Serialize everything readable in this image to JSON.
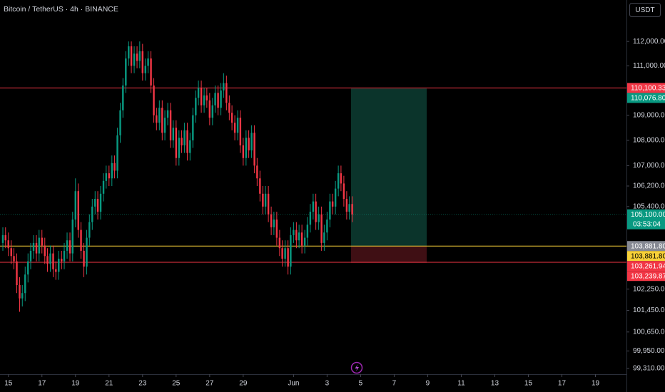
{
  "chart_data": {
    "type": "candlestick",
    "title": "Bitcoin / TetherUS · 4h · BINANCE",
    "currency": "USDT",
    "log_scale": true,
    "grid": false,
    "up_color": "#089981",
    "down_color": "#f23645",
    "xlim": [
      -0.5,
      36.85
    ],
    "ylim": [
      99100,
      113720
    ],
    "xticks": [
      {
        "value": 0,
        "label": "15"
      },
      {
        "value": 2,
        "label": "17"
      },
      {
        "value": 4,
        "label": "19"
      },
      {
        "value": 6,
        "label": "21"
      },
      {
        "value": 8,
        "label": "23"
      },
      {
        "value": 10,
        "label": "25"
      },
      {
        "value": 12,
        "label": "27"
      },
      {
        "value": 14,
        "label": "29"
      },
      {
        "value": 17,
        "label": "Jun"
      },
      {
        "value": 19,
        "label": "3"
      },
      {
        "value": 21,
        "label": "5"
      },
      {
        "value": 23,
        "label": "7"
      },
      {
        "value": 25,
        "label": "9"
      },
      {
        "value": 27,
        "label": "11"
      },
      {
        "value": 29,
        "label": "13"
      },
      {
        "value": 31,
        "label": "15"
      },
      {
        "value": 33,
        "label": "17"
      },
      {
        "value": 35,
        "label": "19"
      }
    ],
    "yticks": [
      {
        "value": 112000,
        "label": "112,000.00"
      },
      {
        "value": 111000,
        "label": "111,000.00"
      },
      {
        "value": 109000,
        "label": "109,000.00"
      },
      {
        "value": 108000,
        "label": "108,000.00"
      },
      {
        "value": 107000,
        "label": "107,000.00"
      },
      {
        "value": 106200,
        "label": "106,200.00"
      },
      {
        "value": 105400,
        "label": "105,400.00"
      },
      {
        "value": 102250,
        "label": "102,250.00"
      },
      {
        "value": 101450,
        "label": "101,450.00"
      },
      {
        "value": 100650,
        "label": "100,650.00"
      },
      {
        "value": 99950,
        "label": "99,950.00"
      },
      {
        "value": 99310,
        "label": "99,310.00"
      }
    ],
    "x": [
      -0.33,
      -0.17,
      0,
      0.17,
      0.33,
      0.5,
      0.67,
      0.83,
      1,
      1.17,
      1.33,
      1.5,
      1.67,
      1.83,
      2,
      2.17,
      2.33,
      2.5,
      2.67,
      2.83,
      3,
      3.17,
      3.33,
      3.5,
      3.67,
      3.83,
      4,
      4.17,
      4.33,
      4.5,
      4.67,
      4.83,
      5,
      5.17,
      5.33,
      5.5,
      5.67,
      5.83,
      6,
      6.17,
      6.33,
      6.5,
      6.67,
      6.83,
      7,
      7.17,
      7.33,
      7.5,
      7.67,
      7.83,
      8,
      8.17,
      8.33,
      8.5,
      8.67,
      8.83,
      9,
      9.17,
      9.33,
      9.5,
      9.67,
      9.83,
      10,
      10.17,
      10.33,
      10.5,
      10.67,
      10.83,
      11,
      11.17,
      11.33,
      11.5,
      11.67,
      11.83,
      12,
      12.17,
      12.33,
      12.5,
      12.67,
      12.83,
      13,
      13.17,
      13.33,
      13.5,
      13.67,
      13.83,
      14,
      14.17,
      14.33,
      14.5,
      14.67,
      14.83,
      15,
      15.17,
      15.33,
      15.5,
      15.67,
      15.83,
      16,
      16.17,
      16.33,
      16.5,
      16.67,
      16.83,
      17,
      17.17,
      17.33,
      17.5,
      17.67,
      17.83,
      18,
      18.17,
      18.33,
      18.5,
      18.67,
      18.83,
      19,
      19.17,
      19.33,
      19.5,
      19.67,
      19.83,
      20,
      20.17,
      20.33,
      20.5
    ],
    "open": [
      104000,
      104300,
      104100,
      103800,
      103500,
      103300,
      102400,
      101900,
      102100,
      102800,
      103300,
      103700,
      104000,
      103600,
      104200,
      103900,
      103500,
      103200,
      103600,
      103000,
      102900,
      103400,
      103300,
      103700,
      104100,
      103600,
      104900,
      106000,
      104500,
      103700,
      103100,
      104200,
      104800,
      105400,
      105700,
      105200,
      105900,
      106400,
      106700,
      106500,
      107100,
      106800,
      108200,
      109200,
      110200,
      111300,
      111800,
      111000,
      111500,
      111200,
      111600,
      110700,
      111000,
      111300,
      110200,
      109000,
      108700,
      109300,
      108300,
      108900,
      109200,
      108000,
      108500,
      107300,
      108100,
      107800,
      108400,
      107500,
      108000,
      109000,
      109700,
      110100,
      109400,
      109800,
      109600,
      108900,
      109400,
      109900,
      109300,
      110000,
      110300,
      109500,
      109100,
      108700,
      108300,
      108900,
      107800,
      107300,
      108100,
      107600,
      108300,
      107000,
      106500,
      105900,
      105400,
      105900,
      105100,
      104600,
      104900,
      104200,
      103800,
      103400,
      103800,
      103100,
      104300,
      104500,
      104100,
      104400,
      103900,
      104200,
      104700,
      105200,
      105600,
      104800,
      105100,
      104000,
      104400,
      104900,
      105600,
      105400,
      106100,
      106700,
      106300,
      105700,
      105200,
      105500
    ],
    "high": [
      104600,
      104600,
      104400,
      104100,
      103800,
      103600,
      102700,
      102400,
      103100,
      103600,
      104000,
      104300,
      104300,
      104500,
      104500,
      104200,
      103800,
      103900,
      103900,
      103300,
      103700,
      103700,
      104000,
      104400,
      104400,
      105200,
      106500,
      106300,
      104800,
      104000,
      104500,
      105100,
      105700,
      106000,
      106000,
      106200,
      106700,
      107000,
      107000,
      107400,
      107400,
      108500,
      109500,
      110500,
      111600,
      112000,
      112000,
      111800,
      111800,
      112000,
      111900,
      111300,
      111600,
      111600,
      110500,
      109300,
      109600,
      109600,
      109200,
      109500,
      109500,
      108800,
      108800,
      108400,
      108400,
      108700,
      108700,
      108300,
      109300,
      110000,
      110400,
      110400,
      110100,
      110100,
      109900,
      109700,
      110200,
      110200,
      110300,
      110700,
      110600,
      109800,
      109400,
      109000,
      109200,
      109200,
      108100,
      108400,
      108400,
      108600,
      108600,
      107300,
      106800,
      106200,
      106200,
      106200,
      105400,
      105200,
      105200,
      104500,
      104100,
      104100,
      104100,
      104600,
      104800,
      104800,
      104700,
      104700,
      104500,
      105000,
      105500,
      105900,
      105900,
      105400,
      105400,
      104700,
      105200,
      105900,
      105900,
      106400,
      107000,
      107000,
      106600,
      106000,
      105800,
      105800
    ],
    "low": [
      103700,
      103800,
      103500,
      103200,
      103000,
      102100,
      101400,
      101600,
      101800,
      102500,
      103000,
      103400,
      103300,
      103300,
      103600,
      103200,
      102900,
      102900,
      102700,
      102600,
      102600,
      103000,
      103000,
      103400,
      103300,
      103300,
      104600,
      104200,
      103400,
      102700,
      102800,
      103900,
      104500,
      105100,
      104900,
      104900,
      105600,
      106100,
      106200,
      106200,
      106500,
      106500,
      107900,
      108900,
      109900,
      111000,
      110700,
      110700,
      110900,
      110900,
      110400,
      110400,
      110700,
      109900,
      108700,
      108400,
      108400,
      108000,
      108000,
      108600,
      107700,
      107700,
      107000,
      107000,
      107500,
      107500,
      107200,
      107200,
      107700,
      108700,
      109400,
      109100,
      109100,
      109300,
      108600,
      108600,
      109100,
      109000,
      109000,
      109700,
      109200,
      108800,
      108400,
      108000,
      108000,
      107500,
      107000,
      107000,
      107300,
      107300,
      106700,
      106200,
      105600,
      105100,
      105100,
      104800,
      104300,
      104300,
      103900,
      103500,
      103100,
      103100,
      102800,
      102800,
      104000,
      103800,
      103800,
      103600,
      103600,
      103900,
      104400,
      104900,
      104500,
      104500,
      103700,
      103700,
      104100,
      104600,
      105100,
      105100,
      105800,
      106000,
      105400,
      104900,
      104900,
      104800
    ],
    "close": [
      104300,
      104100,
      103800,
      103500,
      103300,
      102400,
      101900,
      102100,
      102800,
      103300,
      103700,
      104000,
      103600,
      104200,
      103900,
      103500,
      103200,
      103600,
      103000,
      102900,
      103400,
      103300,
      103700,
      104100,
      103600,
      104900,
      106000,
      104500,
      103700,
      103100,
      104200,
      104800,
      105400,
      105700,
      105200,
      105900,
      106400,
      106700,
      106500,
      107100,
      106800,
      108200,
      109200,
      110200,
      111300,
      111800,
      111000,
      111500,
      111200,
      111600,
      110700,
      111000,
      111300,
      110200,
      109000,
      108700,
      109300,
      108300,
      108900,
      109200,
      108000,
      108500,
      107300,
      108100,
      107800,
      108400,
      107500,
      108000,
      109000,
      109700,
      110100,
      109400,
      109800,
      109600,
      108900,
      109400,
      109900,
      109300,
      110000,
      110300,
      109500,
      109100,
      108700,
      108300,
      108900,
      107800,
      107300,
      108100,
      107600,
      108300,
      107000,
      106500,
      105900,
      105400,
      105900,
      105100,
      104600,
      104900,
      104200,
      103800,
      103400,
      103800,
      103100,
      104300,
      104500,
      104100,
      104400,
      103900,
      104200,
      104700,
      105200,
      105600,
      104800,
      105100,
      104000,
      104400,
      104900,
      105600,
      105400,
      106100,
      106700,
      106300,
      105700,
      105200,
      105500,
      105100
    ],
    "lines": [
      {
        "value": 110100.33,
        "label": "110,100.33",
        "color": "#f23645"
      },
      {
        "value": 103881.8,
        "label": "103,881.80",
        "color": "#f7d038"
      },
      {
        "value": 103261.94,
        "label": "103,261.94",
        "color": "#f23645"
      }
    ],
    "last_price": {
      "value": 105100,
      "label": "105,100.00",
      "countdown": "03:53:04",
      "color": "#089981"
    },
    "position": {
      "start": 20.43,
      "end": 24.94,
      "profit_color": "#0d3d33",
      "loss_color": "#4a1217",
      "target": {
        "value": 110076.8,
        "label": "110,076.80",
        "color": "#089981"
      },
      "entry": {
        "value": 103881.8,
        "label": "103,881.80",
        "color": "#868993"
      },
      "stop": {
        "value": 103239.87,
        "label": "103,239.87",
        "color": "#f23645"
      }
    }
  }
}
